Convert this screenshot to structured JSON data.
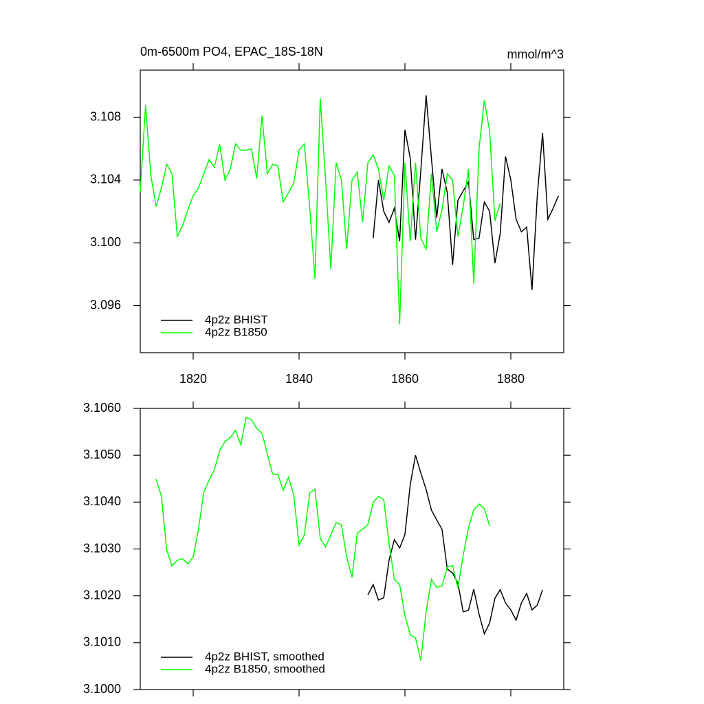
{
  "chart_data": [
    {
      "type": "line",
      "title": "0m-6500m PO4, EPAC_18S-18N",
      "units": "mmol/m^3",
      "xlim": [
        1810,
        1890
      ],
      "xticks": [
        1820,
        1840,
        1860,
        1880
      ],
      "ylim": [
        3.093,
        3.111
      ],
      "yticks": [
        3.096,
        {
          "value": 3.1,
          "label": "3.100"
        },
        3.104,
        3.108
      ],
      "legend": "lower left",
      "series": [
        {
          "name": "4p2z BHIST",
          "color": "#000000",
          "x": [
            1854,
            1855,
            1856,
            1857,
            1858,
            1859,
            1860,
            1861,
            1862,
            1863,
            1864,
            1865,
            1866,
            1867,
            1868,
            1869,
            1870,
            1871,
            1872,
            1873,
            1874,
            1875,
            1876,
            1877,
            1878,
            1879,
            1880,
            1881,
            1882,
            1883,
            1884,
            1885,
            1886,
            1887,
            1888,
            1889
          ],
          "values": [
            3.1003,
            3.104,
            3.102,
            3.1013,
            3.1022,
            3.1001,
            3.1072,
            3.1054,
            3.1002,
            3.1046,
            3.1094,
            3.1054,
            3.1016,
            3.1047,
            3.1032,
            3.0986,
            3.1027,
            3.1033,
            3.1039,
            3.1002,
            3.1003,
            3.1026,
            3.102,
            3.0987,
            3.1006,
            3.1055,
            3.104,
            3.1015,
            3.1007,
            3.101,
            3.097,
            3.103,
            3.107,
            3.1015,
            3.1022,
            3.103
          ]
        },
        {
          "name": "4p2z B1850",
          "color": "#00ff00",
          "x": [
            1810,
            1811,
            1812,
            1813,
            1814,
            1815,
            1816,
            1817,
            1818,
            1819,
            1820,
            1821,
            1822,
            1823,
            1824,
            1825,
            1826,
            1827,
            1828,
            1829,
            1830,
            1831,
            1832,
            1833,
            1834,
            1835,
            1836,
            1837,
            1838,
            1839,
            1840,
            1841,
            1842,
            1843,
            1844,
            1845,
            1846,
            1847,
            1848,
            1849,
            1850,
            1851,
            1852,
            1853,
            1854,
            1855,
            1856,
            1857,
            1858,
            1859,
            1860,
            1861,
            1862,
            1863,
            1864,
            1865,
            1866,
            1867,
            1868,
            1869,
            1870,
            1871,
            1872,
            1873,
            1874,
            1875,
            1876,
            1877,
            1878
          ],
          "values": [
            3.10326,
            3.10877,
            3.1043,
            3.1023,
            3.1035,
            3.105,
            3.1044,
            3.1004,
            3.1011,
            3.1021,
            3.103,
            3.1035,
            3.1044,
            3.1053,
            3.1048,
            3.1063,
            3.104,
            3.1047,
            3.1063,
            3.1059,
            3.1059,
            3.106,
            3.1041,
            3.1081,
            3.1044,
            3.105,
            3.1049,
            3.1026,
            3.1032,
            3.1038,
            3.1059,
            3.1063,
            3.1023,
            3.0977,
            3.1092,
            3.1041,
            3.0983,
            3.1051,
            3.104,
            3.0996,
            3.104,
            3.1045,
            3.1013,
            3.1051,
            3.1056,
            3.1047,
            3.1027,
            3.1049,
            3.1043,
            3.0948,
            3.1051,
            3.1001,
            3.1051,
            3.1003,
            3.0996,
            3.1044,
            3.1007,
            3.1021,
            3.1044,
            3.104,
            3.1004,
            3.1023,
            3.1047,
            3.0974,
            3.106,
            3.1091,
            3.1071,
            3.1014,
            3.1025
          ]
        }
      ]
    },
    {
      "type": "line",
      "xlim": [
        1810,
        1890
      ],
      "xticks": [
        1820,
        1840,
        1860,
        1880
      ],
      "ylim": [
        3.1,
        3.106
      ],
      "yticks": [
        {
          "value": 3.1,
          "label": "3.1000"
        },
        {
          "value": 3.101,
          "label": "3.1010"
        },
        {
          "value": 3.102,
          "label": "3.1020"
        },
        {
          "value": 3.103,
          "label": "3.1030"
        },
        {
          "value": 3.104,
          "label": "3.1040"
        },
        {
          "value": 3.105,
          "label": "3.1050"
        },
        {
          "value": 3.106,
          "label": "3.1060"
        }
      ],
      "legend": "lower left",
      "series": [
        {
          "name": "4p2z BHIST, smoothed",
          "color": "#000000",
          "x": [
            1853,
            1854,
            1855,
            1856,
            1857,
            1858,
            1859,
            1860,
            1861,
            1862,
            1863,
            1864,
            1865,
            1866,
            1867,
            1868,
            1869,
            1870,
            1871,
            1872,
            1873,
            1874,
            1875,
            1876,
            1877,
            1878,
            1879,
            1880,
            1881,
            1882,
            1883,
            1884,
            1885,
            1886
          ],
          "values": [
            3.10202,
            3.10224,
            3.10191,
            3.10196,
            3.10276,
            3.1032,
            3.10302,
            3.10331,
            3.10437,
            3.105,
            3.10462,
            3.10427,
            3.10383,
            3.10362,
            3.10342,
            3.10257,
            3.10249,
            3.10227,
            3.10166,
            3.10169,
            3.10214,
            3.10161,
            3.10119,
            3.10142,
            3.10195,
            3.10213,
            3.10185,
            3.1017,
            3.10148,
            3.10185,
            3.10205,
            3.1017,
            3.1018,
            3.10213
          ]
        },
        {
          "name": "4p2z B1850, smoothed",
          "color": "#00ff00",
          "x": [
            1813,
            1814,
            1815,
            1816,
            1817,
            1818,
            1819,
            1820,
            1821,
            1822,
            1823,
            1824,
            1825,
            1826,
            1827,
            1828,
            1829,
            1830,
            1831,
            1832,
            1833,
            1834,
            1835,
            1836,
            1837,
            1838,
            1839,
            1840,
            1841,
            1842,
            1843,
            1844,
            1845,
            1846,
            1847,
            1848,
            1849,
            1850,
            1851,
            1852,
            1853,
            1854,
            1855,
            1856,
            1857,
            1858,
            1859,
            1860,
            1861,
            1862,
            1863,
            1864,
            1865,
            1866,
            1867,
            1868,
            1869,
            1870,
            1871,
            1872,
            1873,
            1874,
            1875,
            1876
          ],
          "values": [
            3.10449,
            3.10412,
            3.10298,
            3.10264,
            3.10276,
            3.10279,
            3.10268,
            3.10283,
            3.10342,
            3.10421,
            3.10447,
            3.10469,
            3.1051,
            3.10529,
            3.10538,
            3.10553,
            3.10522,
            3.10581,
            3.10576,
            3.10557,
            3.10547,
            3.10503,
            3.1046,
            3.10459,
            3.10425,
            3.10453,
            3.10415,
            3.10308,
            3.1033,
            3.10419,
            3.10428,
            3.10323,
            3.10304,
            3.1033,
            3.10356,
            3.10352,
            3.10283,
            3.10239,
            3.10334,
            3.10342,
            3.10352,
            3.10399,
            3.10412,
            3.10405,
            3.10312,
            3.10235,
            3.10224,
            3.10158,
            3.10117,
            3.1011,
            3.10062,
            3.10166,
            3.10235,
            3.10218,
            3.10221,
            3.10261,
            3.10265,
            3.10217,
            3.10286,
            3.10345,
            3.10383,
            3.10396,
            3.10386,
            3.10349
          ]
        }
      ]
    }
  ]
}
